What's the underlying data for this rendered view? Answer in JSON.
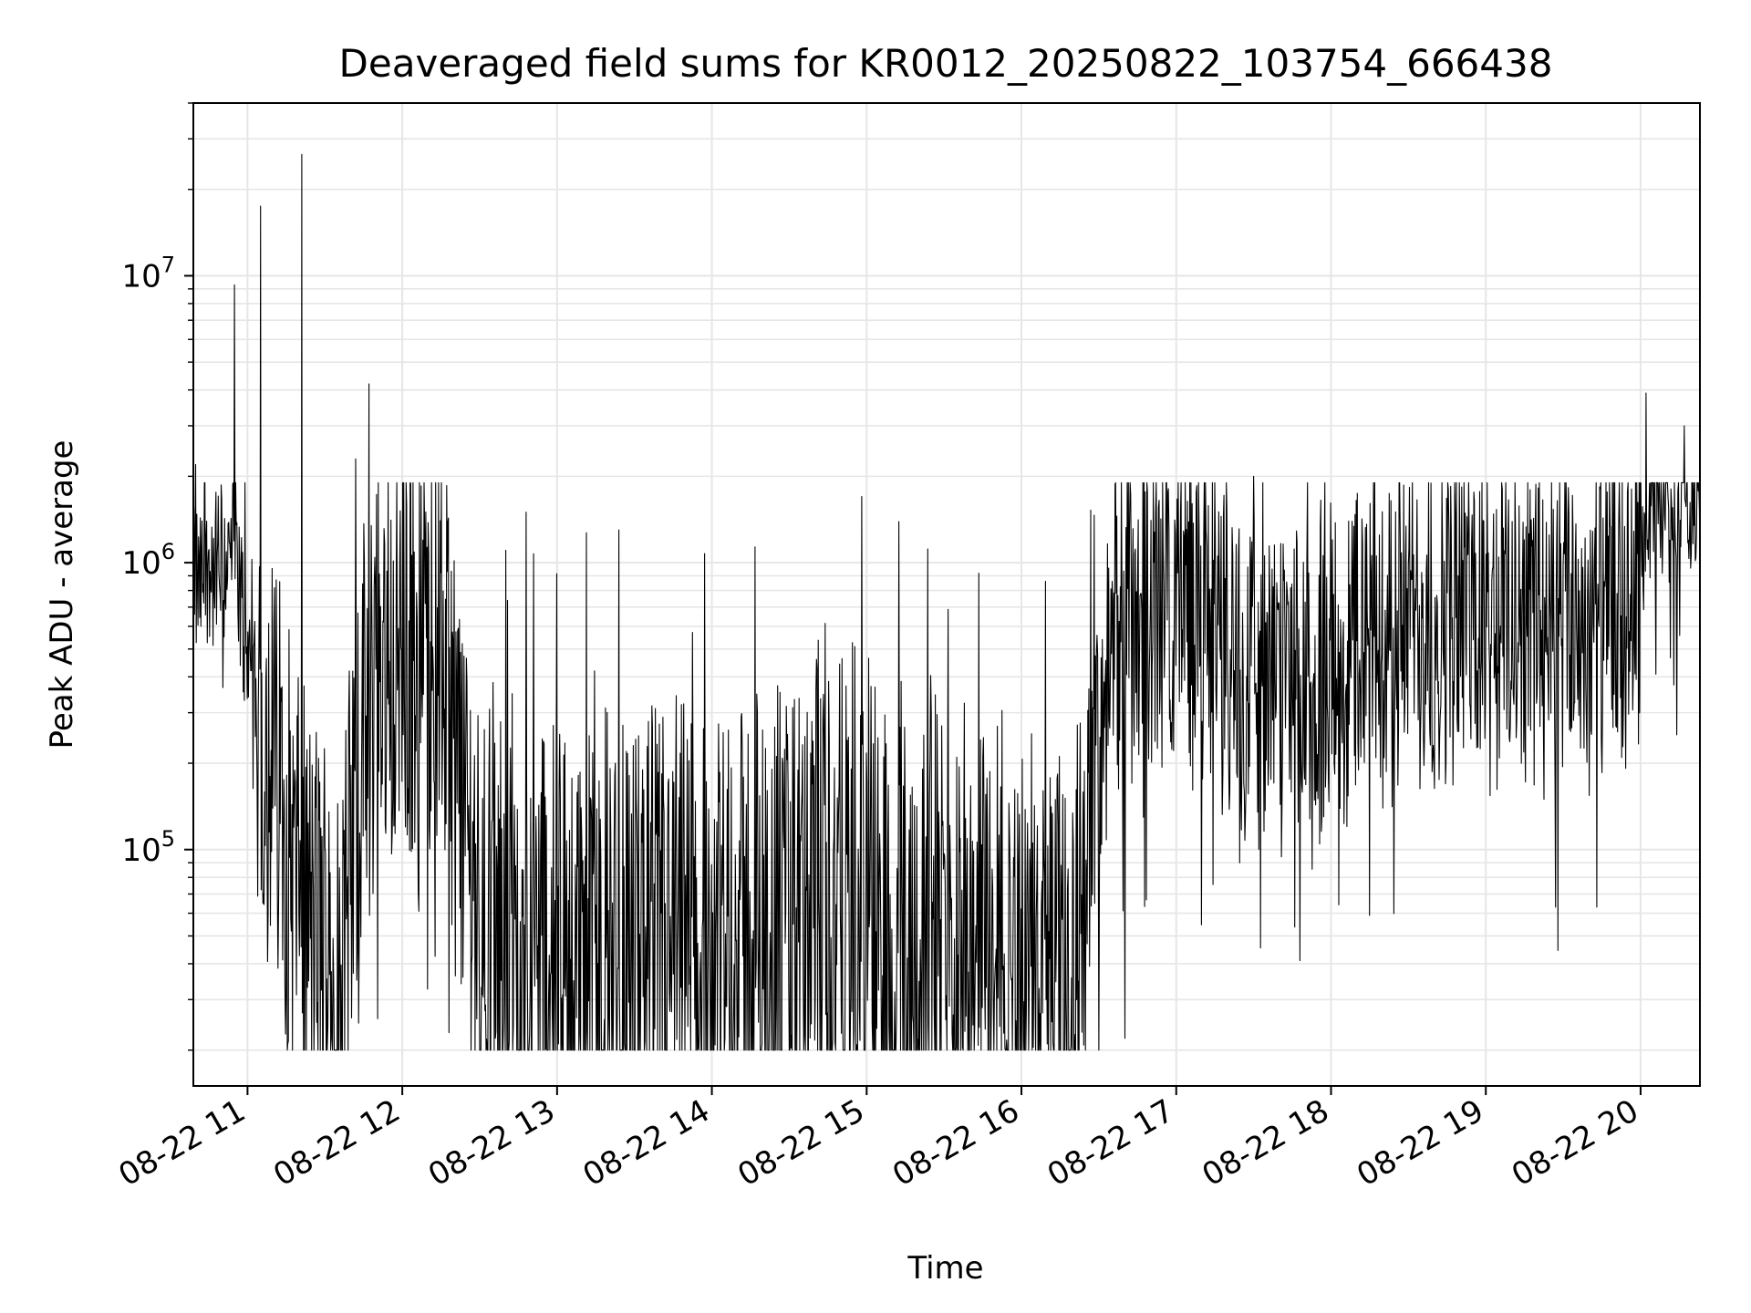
{
  "chart_data": {
    "type": "line",
    "title": "Deaveraged field sums for KR0012_20250822_103754_666438",
    "xlabel": "Time",
    "ylabel": "Peak ADU - average",
    "x_ticks": [
      "08-22 11",
      "08-22 12",
      "08-22 13",
      "08-22 14",
      "08-22 15",
      "08-22 16",
      "08-22 17",
      "08-22 18",
      "08-22 19",
      "08-22 20"
    ],
    "y_ticks": [
      {
        "base": "10",
        "exp": "5",
        "value": 100000
      },
      {
        "base": "10",
        "exp": "6",
        "value": 1000000
      },
      {
        "base": "10",
        "exp": "7",
        "value": 10000000
      }
    ],
    "x_range": [
      "2025-08-22 10:39",
      "2025-08-22 20:23"
    ],
    "ylim": [
      15000,
      40000000
    ],
    "y_scale": "log",
    "grid": true,
    "line_color": "#000000",
    "grid_color": "#e6e6e6",
    "series": [
      {
        "name": "",
        "trend": [
          [
            "10:39",
            800000
          ],
          [
            "10:55",
            1100000
          ],
          [
            "11:02",
            350000
          ],
          [
            "11:12",
            200000
          ],
          [
            "11:20",
            60000
          ],
          [
            "11:35",
            40000
          ],
          [
            "11:50",
            500000
          ],
          [
            "12:15",
            500000
          ],
          [
            "12:30",
            60000
          ],
          [
            "12:45",
            40000
          ],
          [
            "13:30",
            40000
          ],
          [
            "14:00",
            40000
          ],
          [
            "14:20",
            45000
          ],
          [
            "14:50",
            60000
          ],
          [
            "15:20",
            40000
          ],
          [
            "15:40",
            60000
          ],
          [
            "15:55",
            40000
          ],
          [
            "16:20",
            40000
          ],
          [
            "16:35",
            600000
          ],
          [
            "17:00",
            800000
          ],
          [
            "17:20",
            500000
          ],
          [
            "17:45",
            300000
          ],
          [
            "18:15",
            600000
          ],
          [
            "18:45",
            650000
          ],
          [
            "19:15",
            650000
          ],
          [
            "19:40",
            600000
          ],
          [
            "19:55",
            600000
          ],
          [
            "20:05",
            1600000
          ],
          [
            "20:23",
            1800000
          ]
        ],
        "spikes": [
          [
            "10:55",
            9300000
          ],
          [
            "11:05",
            17500000
          ],
          [
            "11:21",
            26500000
          ],
          [
            "11:47",
            4200000
          ],
          [
            "11:42",
            2300000
          ],
          [
            "10:40",
            2200000
          ],
          [
            "12:48",
            1500000
          ],
          [
            "13:24",
            1300000
          ],
          [
            "14:58",
            1700000
          ],
          [
            "17:15",
            1900000
          ],
          [
            "17:30",
            2000000
          ],
          [
            "20:02",
            3900000
          ],
          [
            "20:17",
            3000000
          ]
        ],
        "troughs": [
          [
            "11:12",
            60000
          ],
          [
            "11:20",
            60000
          ],
          [
            "12:18",
            23000
          ],
          [
            "12:36",
            22000
          ],
          [
            "14:05",
            22000
          ],
          [
            "16:10",
            21000
          ],
          [
            "16:30",
            20000
          ],
          [
            "16:40",
            22000
          ],
          [
            "17:48",
            41000
          ],
          [
            "18:15",
            59000
          ],
          [
            "19:27",
            63000
          ],
          [
            "19:43",
            63000
          ]
        ]
      }
    ]
  }
}
